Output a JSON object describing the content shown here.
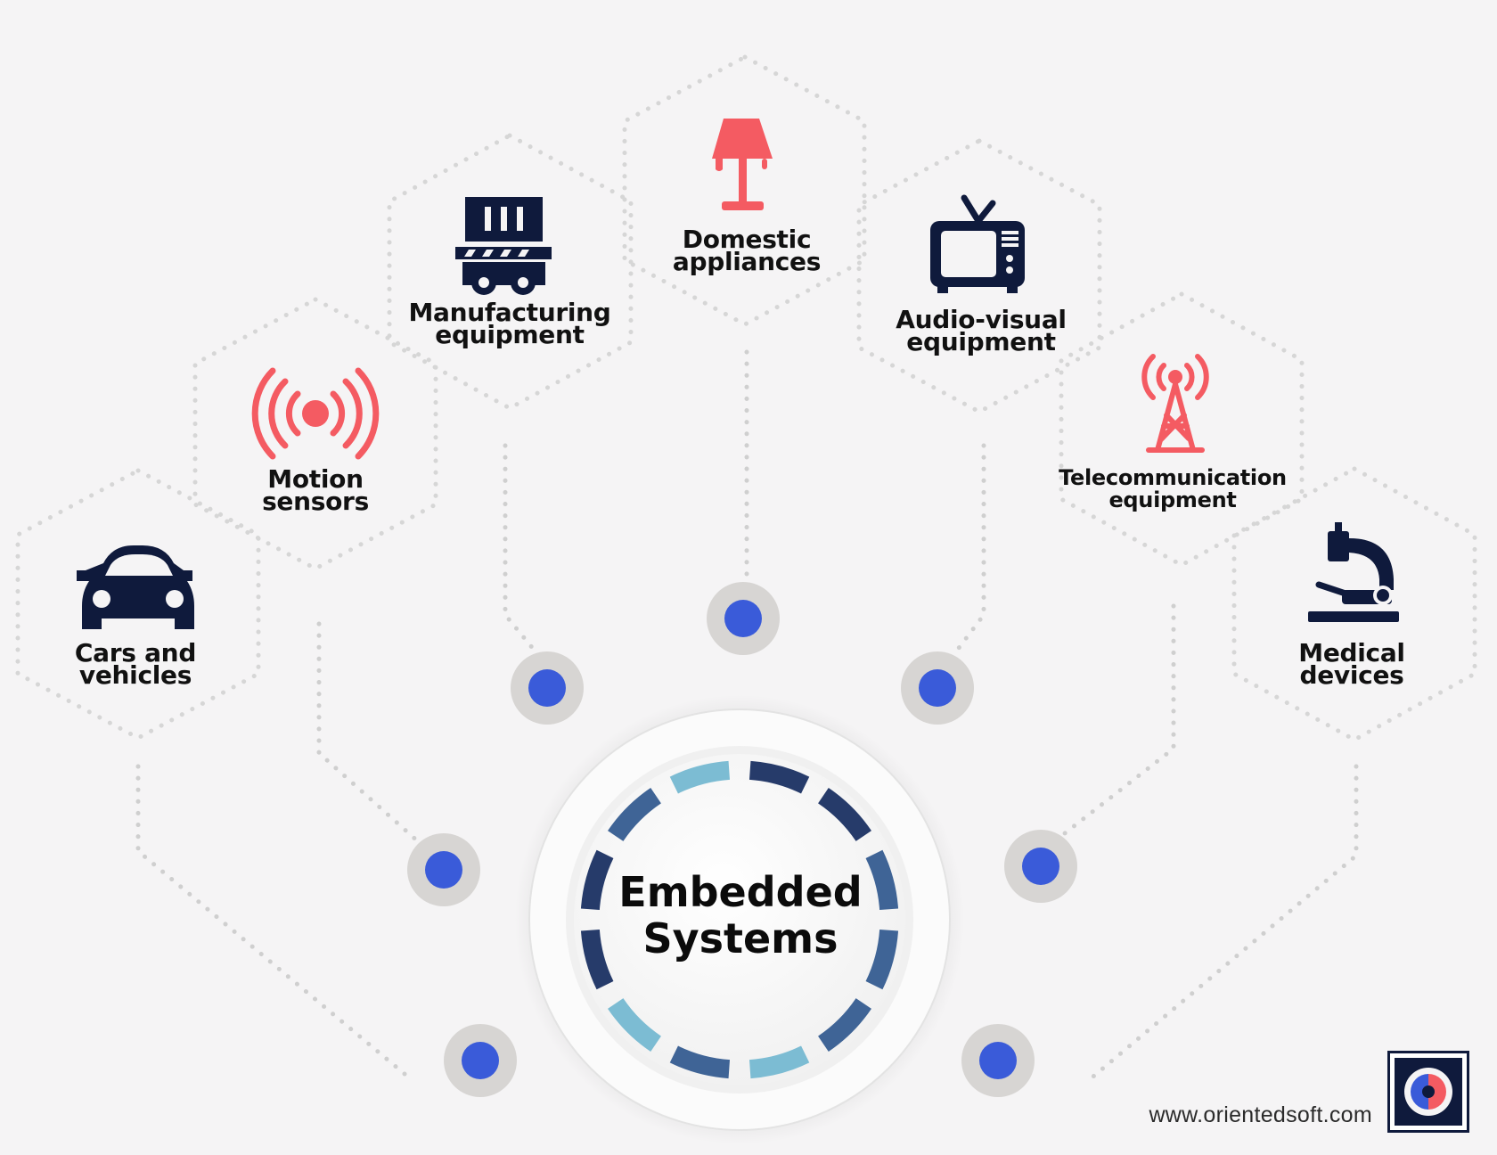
{
  "center": {
    "line1": "Embedded",
    "line2": "Systems"
  },
  "applications": [
    {
      "line1": "Cars and",
      "line2": "vehicles",
      "icon": "car-icon",
      "color": "#0f1a3c"
    },
    {
      "line1": "Motion",
      "line2": "sensors",
      "icon": "motion-sensor-icon",
      "color": "#f45b62"
    },
    {
      "line1": "Manufacturing",
      "line2": "equipment",
      "icon": "conveyor-icon",
      "color": "#0f1a3c"
    },
    {
      "line1": "Domestic",
      "line2": "appliances",
      "icon": "lamp-icon",
      "color": "#f45b62"
    },
    {
      "line1": "Audio-visual",
      "line2": "equipment",
      "icon": "tv-icon",
      "color": "#0f1a3c"
    },
    {
      "line1": "Telecommunication",
      "line2": "equipment",
      "icon": "antenna-tower-icon",
      "color": "#f45b62"
    },
    {
      "line1": "Medical",
      "line2": "devices",
      "icon": "microscope-icon",
      "color": "#0f1a3c"
    }
  ],
  "footer": {
    "website": "www.orientedsoft.com",
    "logo_icon": "orientedsoft-logo-icon"
  },
  "colors": {
    "dark": "#0f1a3c",
    "accent": "#f45b62",
    "node": "#3a5bd9",
    "ring_dark": "#263b6a",
    "ring_mid": "#3f6496",
    "ring_light": "#7cbcd3"
  }
}
